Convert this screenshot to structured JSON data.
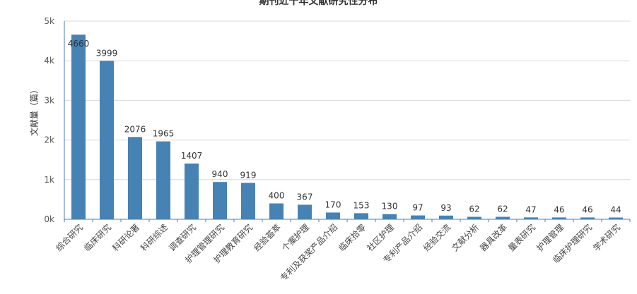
{
  "chart_data": {
    "type": "bar",
    "title": "期刊近十年文献研究性分布",
    "ylabel": "文献量（篇）",
    "xlabel": "",
    "ylim": [
      0,
      5000
    ],
    "yticks": [
      "0k",
      "1k",
      "2k",
      "3k",
      "4k",
      "5k"
    ],
    "categories": [
      "综合研究",
      "临床研究",
      "科研论著",
      "科研综述",
      "调查研究",
      "护理管理研究",
      "护理教育研究",
      "经验荟萃",
      "个案护理",
      "专利及获奖产品介绍",
      "临床拾零",
      "社区护理",
      "专利产品介绍",
      "经验交流",
      "文献分析",
      "器具改革",
      "量表研究",
      "护理管理",
      "临床护理研究",
      "学术研究"
    ],
    "values": [
      4660,
      3999,
      2076,
      1965,
      1407,
      940,
      919,
      400,
      367,
      170,
      153,
      130,
      97,
      93,
      62,
      62,
      47,
      46,
      46,
      44
    ],
    "bar_color": "#4682b4",
    "grid": true,
    "legend": "none"
  }
}
